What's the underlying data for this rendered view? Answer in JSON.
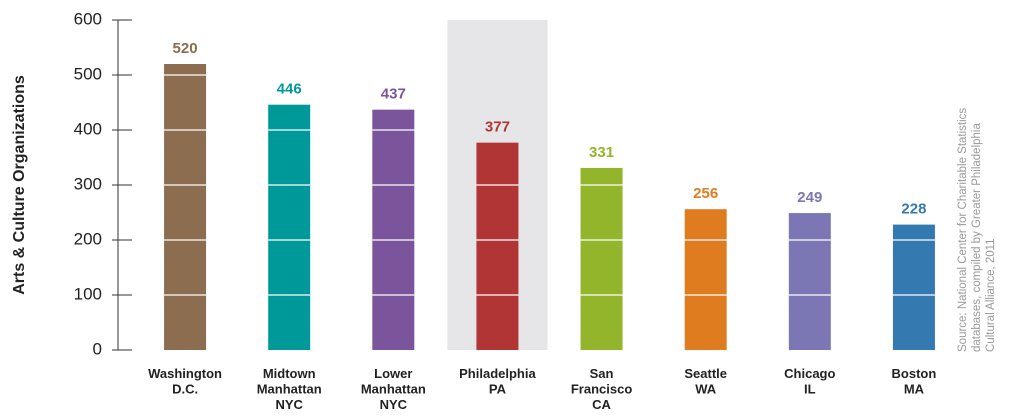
{
  "chart_data": {
    "type": "bar",
    "y_label": "Arts & Culture Organizations",
    "categories": [
      [
        "Washington",
        "D.C."
      ],
      [
        "Midtown",
        "Manhattan",
        "NYC"
      ],
      [
        "Lower",
        "Manhattan",
        "NYC"
      ],
      [
        "Philadelphia",
        "PA"
      ],
      [
        "San",
        "Francisco",
        "CA"
      ],
      [
        "Seattle",
        "WA"
      ],
      [
        "Chicago",
        "IL"
      ],
      [
        "Boston",
        "MA"
      ]
    ],
    "values": [
      520,
      446,
      437,
      377,
      331,
      256,
      249,
      228
    ],
    "colors": [
      "#8c6d4f",
      "#00999a",
      "#7a559c",
      "#b23535",
      "#93b52b",
      "#df7c1f",
      "#7b77b5",
      "#3479b0"
    ],
    "highlight": "Philadelphia",
    "highlight_color": "#e6e6e8",
    "ylim": [
      0,
      600
    ],
    "yticks": [
      0,
      100,
      200,
      300,
      400,
      500,
      600
    ],
    "grid": true,
    "source": [
      "Source: National Center for Charitable Statistics",
      "databases, compiled by Greater Philadelphia",
      "Cultural Alliance, 2011"
    ]
  }
}
